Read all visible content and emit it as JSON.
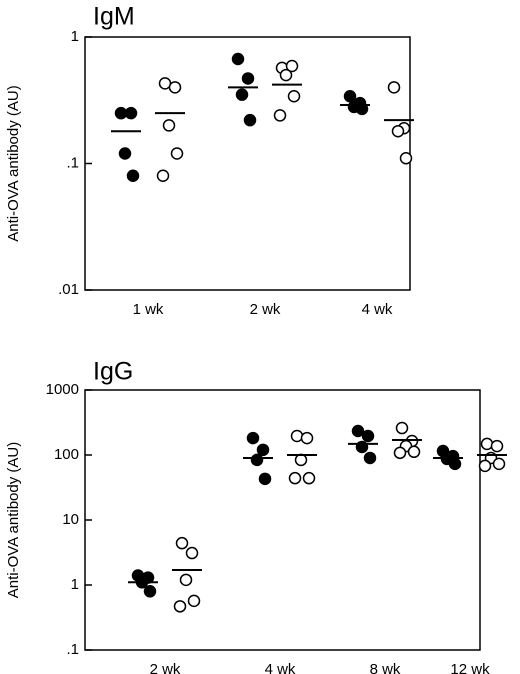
{
  "chart_data": [
    {
      "type": "dot",
      "title": "IgM",
      "ylabel": "Anti-OVA antibody (AU)",
      "log_scale": true,
      "categories": [
        "1 wk",
        "2 wk",
        "4 wk"
      ],
      "ylim": [
        0.01,
        1
      ],
      "yticks": [
        1,
        {
          "value": 0.1,
          "label": ".1"
        },
        {
          "value": 0.01,
          "label": ".01"
        }
      ],
      "series": [
        {
          "color": "#000000",
          "filled": true,
          "values": [
            [
              0.25,
              0.25,
              0.12,
              0.08
            ],
            [
              0.67,
              0.47,
              0.35,
              0.22
            ],
            [
              0.34,
              0.3,
              0.28,
              0.27
            ]
          ],
          "means": [
            0.18,
            0.4,
            0.29
          ]
        },
        {
          "color": "#000000",
          "filled": false,
          "values": [
            [
              0.43,
              0.4,
              0.2,
              0.12,
              0.08
            ],
            [
              0.57,
              0.59,
              0.5,
              0.34,
              0.24
            ],
            [
              0.4,
              0.19,
              0.18,
              0.11
            ]
          ],
          "means": [
            0.25,
            0.42,
            0.22
          ]
        }
      ]
    },
    {
      "type": "dot",
      "title": "IgG",
      "ylabel": "Anti-OVA antibody (AU)",
      "log_scale": true,
      "categories": [
        "2 wk",
        "4 wk",
        "8 wk",
        "12 wk"
      ],
      "ylim": [
        0.1,
        1000
      ],
      "yticks": [
        1000,
        100,
        10,
        1,
        {
          "value": 0.1,
          "label": ".1"
        }
      ],
      "series": [
        {
          "color": "#000000",
          "filled": true,
          "values": [
            [
              1.4,
              1.3,
              1.1,
              0.8
            ],
            [
              182,
              120,
              84,
              43
            ],
            [
              234,
              196,
              133,
              90
            ],
            [
              115,
              96,
              87,
              73
            ]
          ],
          "means": [
            1.1,
            90,
            148,
            90
          ]
        },
        {
          "color": "#000000",
          "filled": false,
          "values": [
            [
              4.4,
              3.1,
              1.2,
              0.57,
              0.47
            ],
            [
              196,
              182,
              84,
              44,
              44
            ],
            [
              260,
              164,
              137,
              112,
              108
            ],
            [
              148,
              137,
              90,
              73,
              68
            ]
          ],
          "means": [
            1.7,
            100,
            170,
            100
          ]
        }
      ]
    }
  ]
}
